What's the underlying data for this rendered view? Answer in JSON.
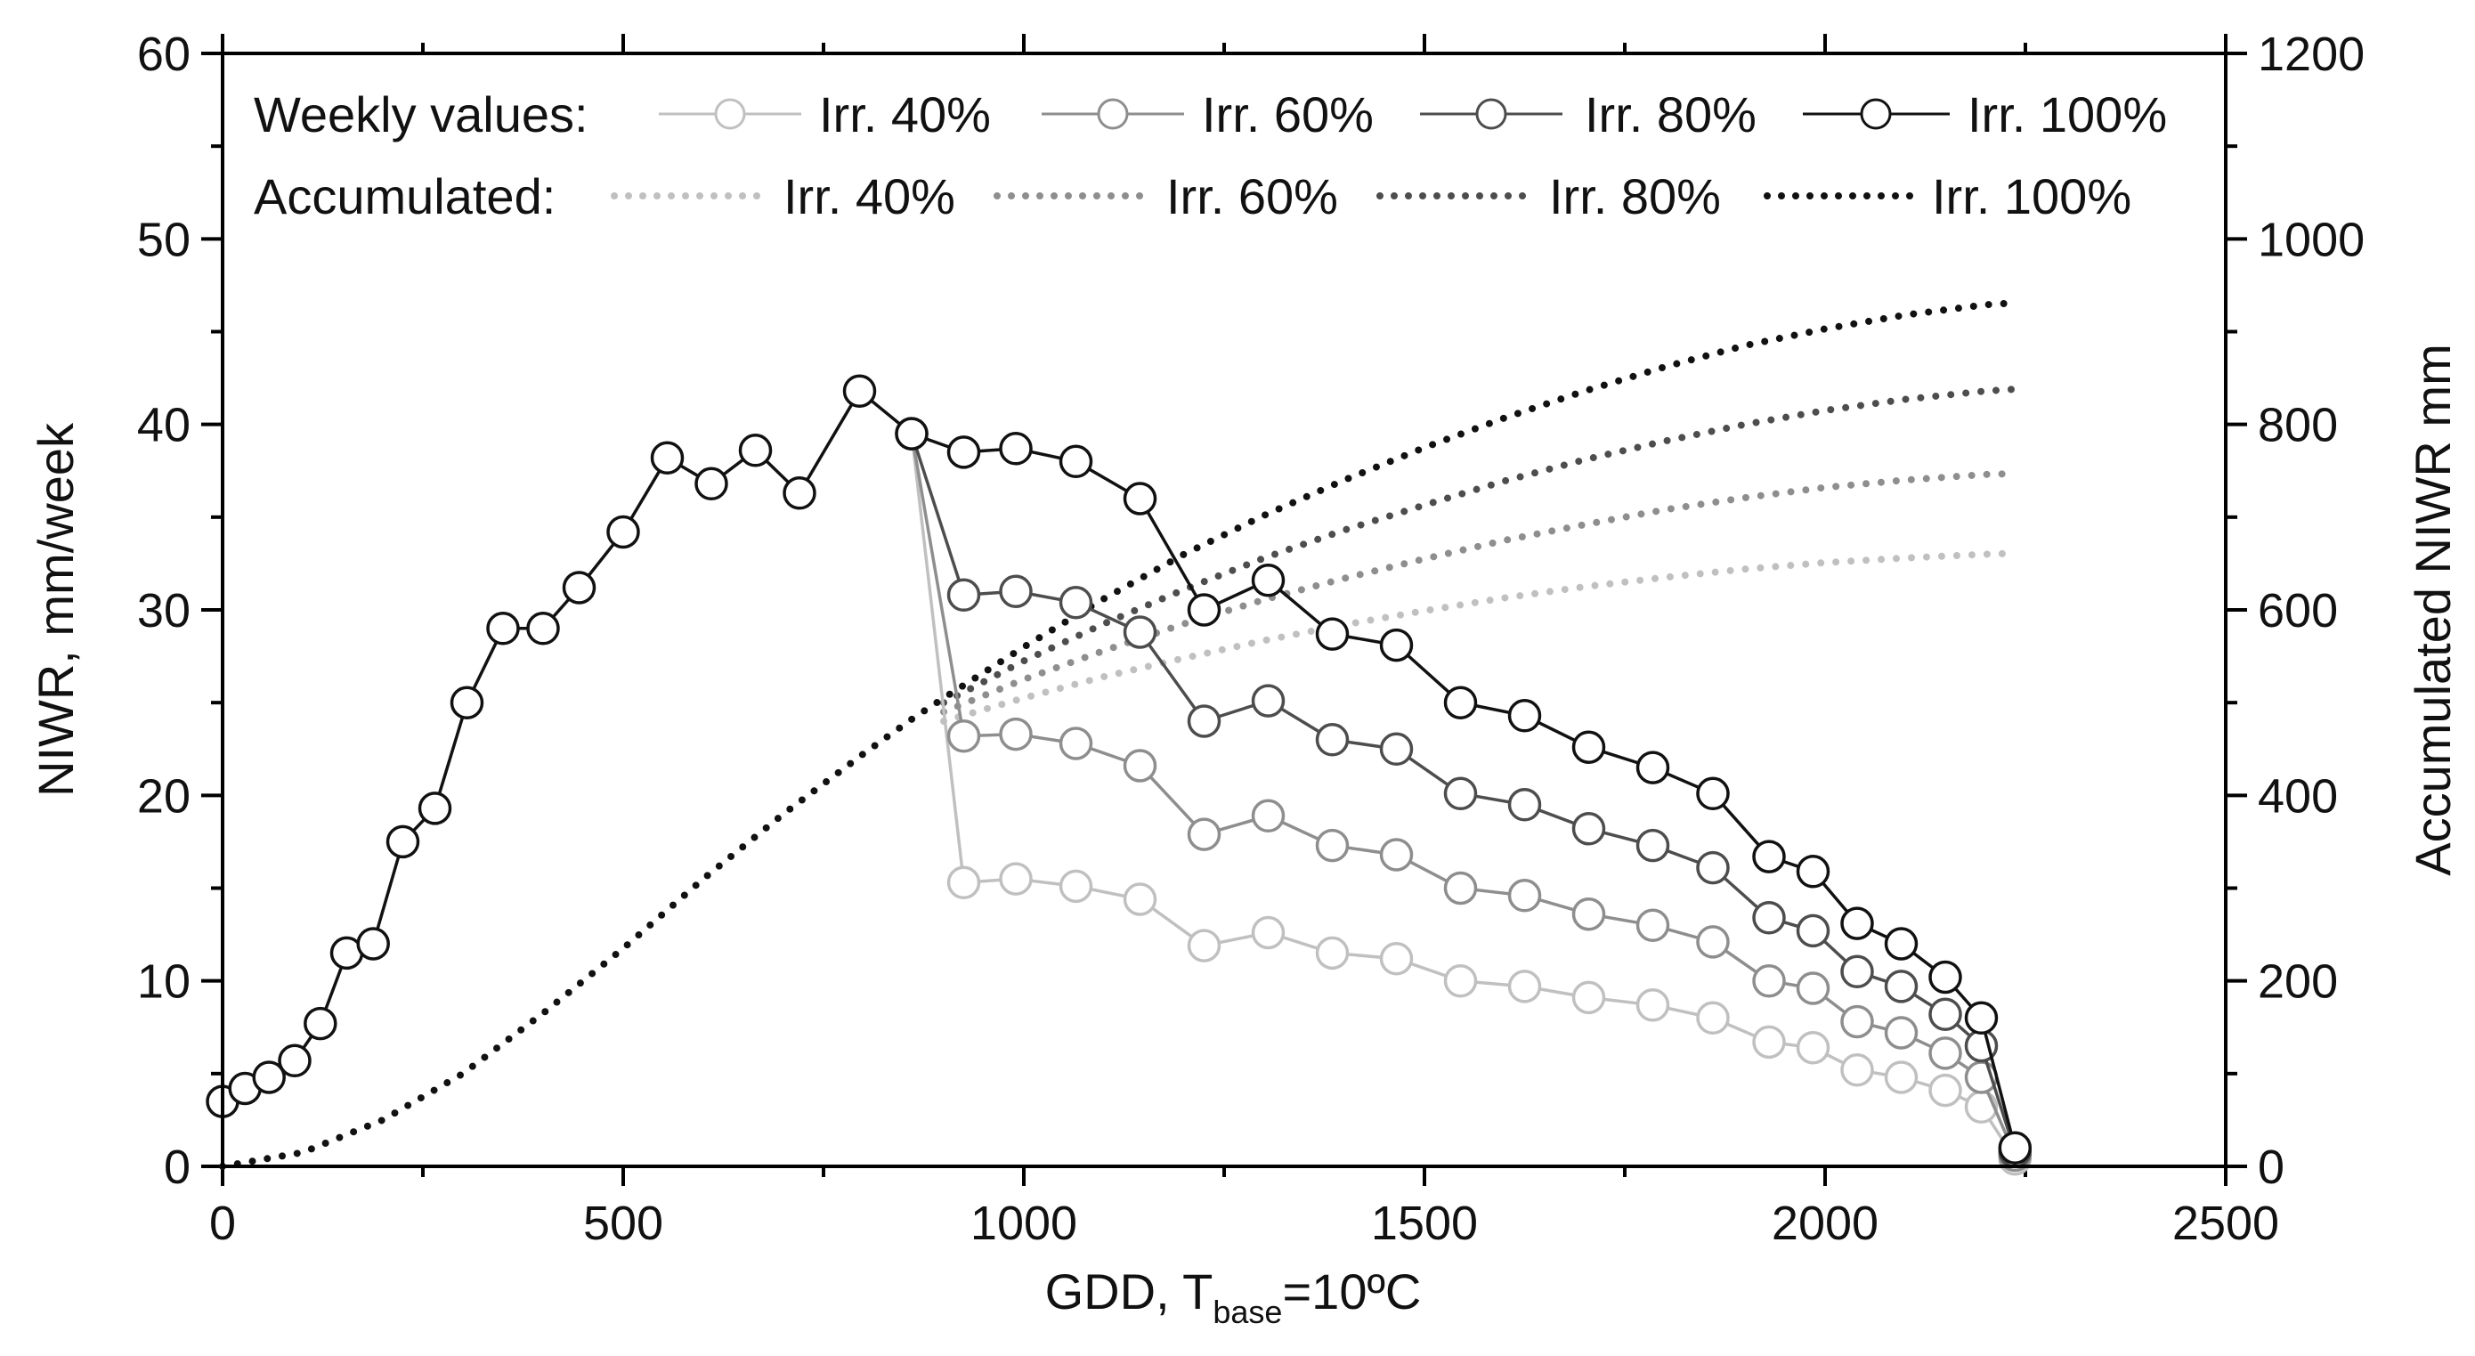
{
  "chart_data": {
    "type": "line",
    "xlabel": {
      "main": "GDD, T",
      "sub": "base",
      "tail": "=10ºC"
    },
    "ylabel": "NIWR, mm/week",
    "y2label": "Accumulated NIWR mm",
    "xlim": [
      0,
      2500
    ],
    "ylim": [
      0,
      60
    ],
    "y2lim": [
      0,
      1200
    ],
    "x_ticks": [
      0,
      500,
      1000,
      1500,
      2000,
      2500
    ],
    "y_ticks": [
      0,
      10,
      20,
      30,
      40,
      50,
      60
    ],
    "y2_ticks": [
      0,
      200,
      400,
      600,
      800,
      1000,
      1200
    ],
    "legend": {
      "weekly_title": "Weekly values:",
      "accumulated_title": "Accumulated:",
      "labels": [
        "Irr. 40%",
        "Irr. 60%",
        "Irr. 80%",
        "Irr. 100%"
      ]
    },
    "colors": [
      "#c0c0c0",
      "#8e8e8e",
      "#4d4d4d",
      "#111111"
    ],
    "weekly_series": [
      {
        "name": "Irr. 100%",
        "color": "#111111",
        "x": [
          0,
          28,
          58,
          90,
          122,
          155,
          188,
          225,
          265,
          305,
          350,
          400,
          445,
          500,
          555,
          610,
          665,
          720,
          795,
          860,
          925,
          990,
          1065,
          1145,
          1225,
          1305,
          1385,
          1465,
          1545,
          1625,
          1705,
          1785,
          1860,
          1930,
          1985,
          2040,
          2095,
          2150,
          2195,
          2237
        ],
        "y": [
          3.5,
          4.2,
          4.8,
          5.7,
          7.7,
          11.5,
          12.0,
          17.5,
          19.3,
          25.0,
          29.0,
          29.0,
          31.2,
          34.2,
          38.2,
          36.8,
          38.6,
          36.3,
          41.8,
          39.5,
          38.5,
          38.7,
          38.0,
          36.0,
          30.0,
          31.6,
          28.7,
          28.1,
          25.0,
          24.3,
          22.6,
          21.5,
          20.1,
          16.7,
          15.9,
          13.1,
          12.0,
          10.2,
          8.0,
          1.0
        ]
      },
      {
        "name": "Irr. 80%",
        "color": "#4d4d4d",
        "x": [
          860,
          925,
          990,
          1065,
          1145,
          1225,
          1305,
          1385,
          1465,
          1545,
          1625,
          1705,
          1785,
          1860,
          1930,
          1985,
          2040,
          2095,
          2150,
          2195,
          2237
        ],
        "y": [
          39.5,
          30.8,
          31.0,
          30.4,
          28.8,
          24.0,
          25.1,
          23.0,
          22.5,
          20.1,
          19.5,
          18.2,
          17.3,
          16.1,
          13.4,
          12.7,
          10.5,
          9.7,
          8.2,
          6.5,
          0.8
        ]
      },
      {
        "name": "Irr. 60%",
        "color": "#8e8e8e",
        "x": [
          860,
          925,
          990,
          1065,
          1145,
          1225,
          1305,
          1385,
          1465,
          1545,
          1625,
          1705,
          1785,
          1860,
          1930,
          1985,
          2040,
          2095,
          2150,
          2195,
          2237
        ],
        "y": [
          39.5,
          23.2,
          23.3,
          22.8,
          21.6,
          17.9,
          18.9,
          17.3,
          16.8,
          15.0,
          14.6,
          13.6,
          13.0,
          12.1,
          10.0,
          9.6,
          7.8,
          7.2,
          6.1,
          4.8,
          0.6
        ]
      },
      {
        "name": "Irr. 40%",
        "color": "#c0c0c0",
        "x": [
          860,
          925,
          990,
          1065,
          1145,
          1225,
          1305,
          1385,
          1465,
          1545,
          1625,
          1705,
          1785,
          1860,
          1930,
          1985,
          2040,
          2095,
          2150,
          2195,
          2237
        ],
        "y": [
          39.5,
          15.3,
          15.5,
          15.1,
          14.4,
          11.9,
          12.6,
          11.5,
          11.2,
          10.0,
          9.7,
          9.1,
          8.7,
          8.0,
          6.7,
          6.4,
          5.2,
          4.8,
          4.1,
          3.2,
          0.4
        ]
      }
    ],
    "accumulated_series": [
      {
        "name": "Irr. 100%",
        "color": "#111111",
        "x": [
          0,
          100,
          200,
          300,
          400,
          500,
          600,
          700,
          800,
          860,
          900,
          1000,
          1100,
          1200,
          1300,
          1400,
          1500,
          1600,
          1700,
          1800,
          1900,
          2000,
          2100,
          2200,
          2237
        ],
        "y": [
          0,
          15,
          50,
          100,
          165,
          235,
          310,
          380,
          445,
          482,
          505,
          560,
          612,
          660,
          702,
          740,
          775,
          807,
          836,
          862,
          885,
          903,
          918,
          929,
          931
        ]
      },
      {
        "name": "Irr. 80%",
        "color": "#4d4d4d",
        "x": [
          900,
          1000,
          1100,
          1200,
          1300,
          1400,
          1500,
          1600,
          1700,
          1800,
          1900,
          2000,
          2100,
          2200,
          2237
        ],
        "y": [
          500,
          545,
          585,
          622,
          656,
          686,
          713,
          739,
          762,
          782,
          800,
          815,
          827,
          836,
          838
        ]
      },
      {
        "name": "Irr. 60%",
        "color": "#8e8e8e",
        "x": [
          900,
          1000,
          1100,
          1200,
          1300,
          1400,
          1500,
          1600,
          1700,
          1800,
          1900,
          2000,
          2100,
          2200,
          2237
        ],
        "y": [
          490,
          525,
          556,
          585,
          611,
          634,
          655,
          675,
          692,
          708,
          721,
          732,
          740,
          746,
          747
        ]
      },
      {
        "name": "Irr. 40%",
        "color": "#c0c0c0",
        "x": [
          900,
          1000,
          1100,
          1200,
          1300,
          1400,
          1500,
          1600,
          1700,
          1800,
          1900,
          2000,
          2100,
          2200,
          2237
        ],
        "y": [
          480,
          505,
          528,
          548,
          567,
          584,
          599,
          613,
          625,
          635,
          644,
          651,
          656,
          660,
          661
        ]
      }
    ]
  }
}
